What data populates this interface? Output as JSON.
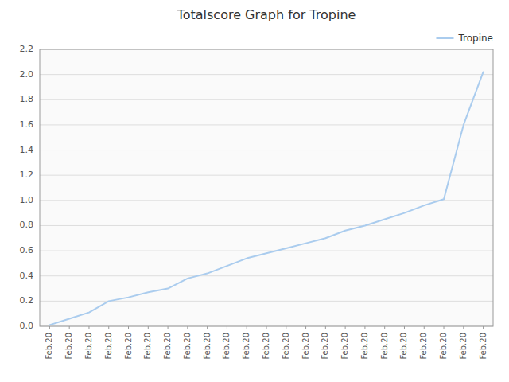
{
  "chart_data": {
    "type": "line",
    "title": "Totalscore Graph for Tropine",
    "x": [
      0,
      1,
      2,
      3,
      4,
      5,
      6,
      7,
      8,
      9,
      10,
      11,
      12,
      13,
      14,
      15,
      16,
      17,
      18,
      19,
      20,
      21,
      22
    ],
    "series": [
      {
        "name": "Tropine",
        "color": "#aaccee",
        "values": [
          0.01,
          0.06,
          0.11,
          0.2,
          0.23,
          0.27,
          0.3,
          0.38,
          0.42,
          0.48,
          0.54,
          0.58,
          0.62,
          0.66,
          0.7,
          0.76,
          0.8,
          0.85,
          0.9,
          0.96,
          1.01,
          1.6,
          2.02
        ]
      }
    ],
    "xlim": [
      -0.5,
      22.5
    ],
    "xticks": [
      {
        "value": 0,
        "label": "Feb.20"
      },
      {
        "value": 1,
        "label": "Feb.20"
      },
      {
        "value": 2,
        "label": "Feb.20"
      },
      {
        "value": 3,
        "label": "Feb.20"
      },
      {
        "value": 4,
        "label": "Feb.20"
      },
      {
        "value": 5,
        "label": "Feb.20"
      },
      {
        "value": 6,
        "label": "Feb.20"
      },
      {
        "value": 7,
        "label": "Feb.20"
      },
      {
        "value": 8,
        "label": "Feb.20"
      },
      {
        "value": 9,
        "label": "Feb.20"
      },
      {
        "value": 10,
        "label": "Feb.20"
      },
      {
        "value": 11,
        "label": "Feb.20"
      },
      {
        "value": 12,
        "label": "Feb.20"
      },
      {
        "value": 13,
        "label": "Feb.20"
      },
      {
        "value": 14,
        "label": "Feb.20"
      },
      {
        "value": 15,
        "label": "Feb.20"
      },
      {
        "value": 16,
        "label": "Feb.20"
      },
      {
        "value": 17,
        "label": "Feb.20"
      },
      {
        "value": 18,
        "label": "Feb.20"
      },
      {
        "value": 19,
        "label": "Feb.20"
      },
      {
        "value": 20,
        "label": "Feb.20"
      },
      {
        "value": 21,
        "label": "Feb.20"
      },
      {
        "value": 22,
        "label": "Feb.20"
      }
    ],
    "ylim": [
      0.0,
      2.2
    ],
    "yticks": [
      {
        "value": 0.0,
        "label": "0.0"
      },
      0.2,
      0.4,
      0.6,
      0.8,
      {
        "value": 1.0,
        "label": "1.0"
      },
      1.2,
      1.4,
      1.6,
      1.8,
      {
        "value": 2.0,
        "label": "2.0"
      },
      2.2
    ],
    "grid": true,
    "legend": "upper right"
  }
}
